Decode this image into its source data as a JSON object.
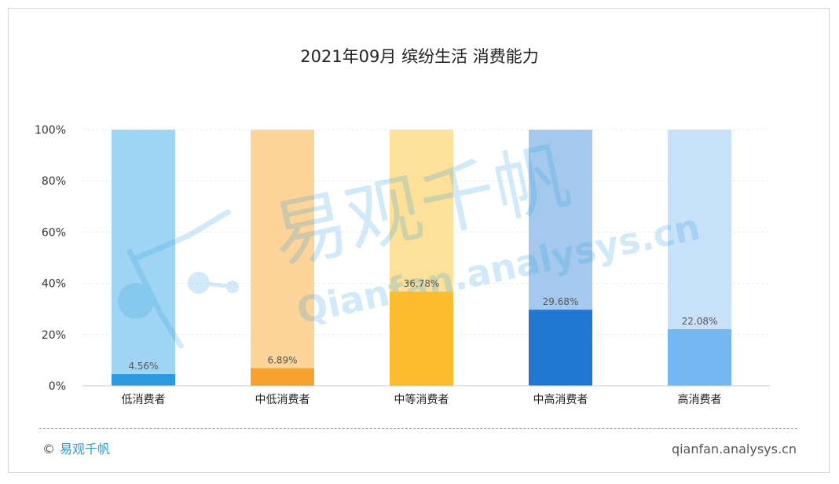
{
  "chart_data": {
    "type": "bar",
    "title": "2021年09月 缤纷生活 消费能力",
    "categories": [
      "低消费者",
      "中低消费者",
      "中等消费者",
      "中高消费者",
      "高消费者"
    ],
    "values": [
      4.56,
      6.89,
      36.78,
      29.68,
      22.08
    ],
    "value_labels": [
      "4.56%",
      "6.89%",
      "36.78%",
      "29.68%",
      "22.08%"
    ],
    "ylim": [
      0,
      100
    ],
    "y_ticks": [
      "0%",
      "20%",
      "40%",
      "60%",
      "80%",
      "100%"
    ],
    "y_tick_values": [
      0,
      20,
      40,
      60,
      80,
      100
    ],
    "bar_colors": [
      "#2b9be0",
      "#f7a22e",
      "#fbbc2e",
      "#2176d0",
      "#73b8f2"
    ],
    "bg_colors": [
      "#9fd5f2",
      "#fdd49a",
      "#fde19a",
      "#a5c9ec",
      "#c7e2f8"
    ],
    "grid": true
  },
  "watermark": {
    "cn": "易观千帆",
    "url": "Qianfan.analysys.cn"
  },
  "footer": {
    "copyright_symbol": "©",
    "brand": "易观千帆",
    "site": "qianfan.analysys.cn"
  }
}
